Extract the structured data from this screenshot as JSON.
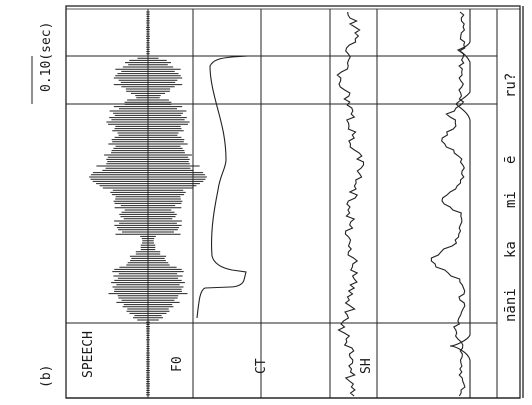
{
  "figure": {
    "panel_label": "(b)",
    "time_scale": "0.10(sec)",
    "channels": [
      "SPEECH",
      "F0",
      "CT",
      "SH"
    ],
    "segments": [
      {
        "label": "nāni"
      },
      {
        "label": "ka"
      },
      {
        "label": "mi"
      },
      {
        "label": "ē"
      },
      {
        "label": "ru?"
      }
    ]
  },
  "colors": {
    "ink": "#222222",
    "background": "#ffffff"
  }
}
